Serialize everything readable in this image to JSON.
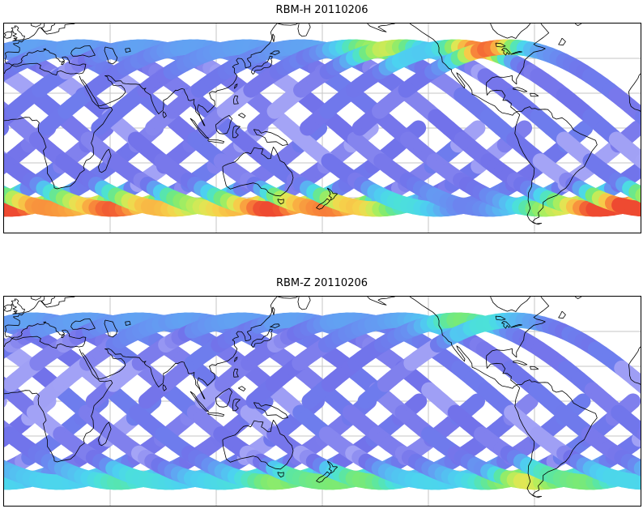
{
  "chart_data": {
    "type": "heatmap",
    "description": "Two satellite ground-track swath coverage maps on equirectangular world projections (Pacific-centered). Criss-crossing diagonal orbit swaths carry low values (periwinkle blue); values rise toward the orbit turn latitude near +/-47 deg, forming continuous scalloped bands along the top and bottom edges colored from light blue/cyan up to yellow/orange/red in localized hotspot regions.",
    "date": "20110206",
    "projection": {
      "type": "equirectangular",
      "lon_range": [
        -10,
        350
      ],
      "lat_range": [
        -60,
        60
      ],
      "grid_lon_step_deg": 60,
      "grid_lat_step_deg": 20,
      "grid": true
    },
    "swaths": {
      "turn_lat_deg": 46.5,
      "track_spacing_deg": 30,
      "band_halfwidth_deg": 4.4,
      "base_value": 0.14,
      "value_jitter": 0.15
    },
    "colormap_stops": [
      [
        0.0,
        "#a4a4f6"
      ],
      [
        0.08,
        "#8b8bf0"
      ],
      [
        0.15,
        "#7272ea"
      ],
      [
        0.22,
        "#6d7fee"
      ],
      [
        0.28,
        "#6697f2"
      ],
      [
        0.34,
        "#58b8f2"
      ],
      [
        0.41,
        "#4cd3f0"
      ],
      [
        0.47,
        "#4ce2d6"
      ],
      [
        0.53,
        "#5ae6a5"
      ],
      [
        0.6,
        "#7cea73"
      ],
      [
        0.68,
        "#abee5e"
      ],
      [
        0.75,
        "#e0e754"
      ],
      [
        0.81,
        "#f6d24b"
      ],
      [
        0.88,
        "#f9a941"
      ],
      [
        0.94,
        "#f77d39"
      ],
      [
        1.0,
        "#ee4a31"
      ]
    ],
    "gridline_color": "#c6c6c6",
    "coastline_color": "#000000",
    "frame_color": "#000000",
    "panels": [
      {
        "title": "RBM-H 20110206",
        "seed": 7,
        "edges": {
          "top": {
            "base": 0.3,
            "spots": [
              {
                "lon": 205,
                "amp": 0.45,
                "sigma": 14
              },
              {
                "lon": 262,
                "amp": 0.74,
                "sigma": 13
              }
            ]
          },
          "bottom": {
            "base": 0.66,
            "spots": [
              {
                "lon": -5,
                "amp": 0.28,
                "sigma": 18
              },
              {
                "lon": 55,
                "amp": 0.32,
                "sigma": 25
              },
              {
                "lon": 145,
                "amp": 0.36,
                "sigma": 22
              },
              {
                "lon": 185,
                "amp": 0.2,
                "sigma": 12
              },
              {
                "lon": 255,
                "amp": -0.42,
                "sigma": 24
              },
              {
                "lon": 330,
                "amp": 0.3,
                "sigma": 22
              }
            ]
          }
        }
      },
      {
        "title": "RBM-Z 20110206",
        "seed": 13,
        "edges": {
          "top": {
            "base": 0.3,
            "spots": [
              {
                "lon": 252,
                "amp": 0.3,
                "sigma": 15
              }
            ]
          },
          "bottom": {
            "base": 0.42,
            "spots": [
              {
                "lon": 60,
                "amp": 0.1,
                "sigma": 12
              },
              {
                "lon": 150,
                "amp": 0.22,
                "sigma": 16
              },
              {
                "lon": 190,
                "amp": 0.2,
                "sigma": 14
              },
              {
                "lon": 285,
                "amp": 0.34,
                "sigma": 14
              },
              {
                "lon": 320,
                "amp": 0.16,
                "sigma": 12
              }
            ]
          }
        }
      }
    ]
  }
}
